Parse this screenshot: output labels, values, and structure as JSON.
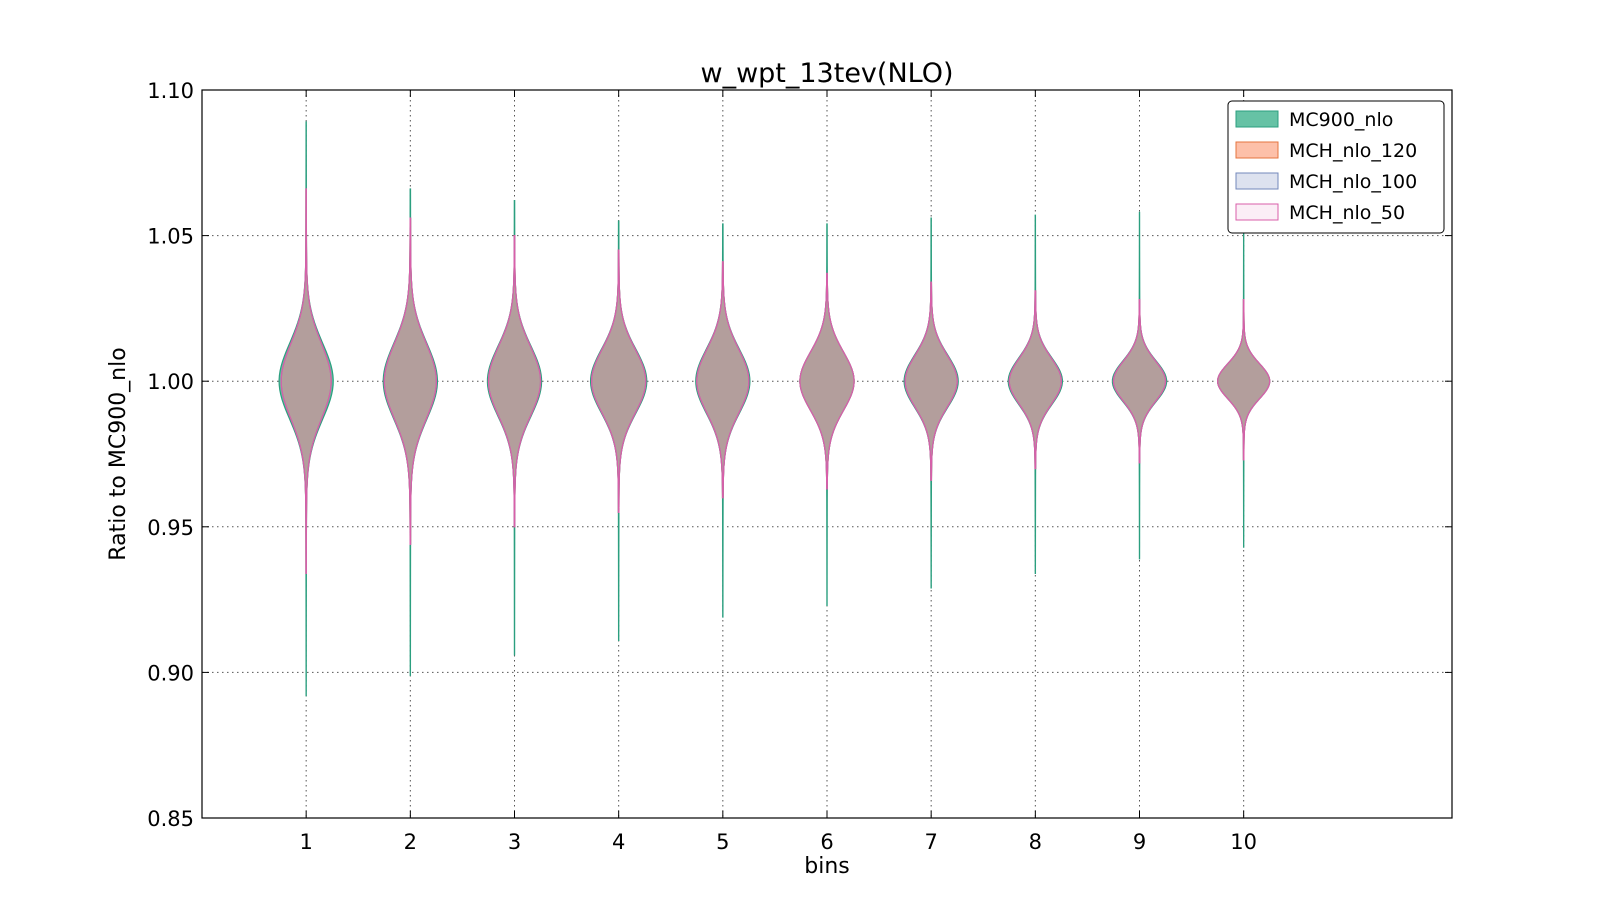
{
  "chart_data": {
    "type": "violin",
    "title": "w_wpt_13tev(NLO)",
    "xlabel": "bins",
    "ylabel": "Ratio to MC900_nlo",
    "ylim": [
      0.85,
      1.1
    ],
    "yticks": [
      "0.85",
      "0.90",
      "0.95",
      "1.00",
      "1.05",
      "1.10"
    ],
    "xlim": [
      0,
      12
    ],
    "categories": [
      "1",
      "2",
      "3",
      "4",
      "5",
      "6",
      "7",
      "8",
      "9",
      "10"
    ],
    "grid": true,
    "legend_position": "top-right",
    "series": [
      {
        "name": "MC900_nlo",
        "color": "#66c2a5",
        "edge": "#2b9f7f",
        "opacity": 1.0,
        "min": [
          0.892,
          0.899,
          0.906,
          0.911,
          0.919,
          0.923,
          0.929,
          0.934,
          0.939,
          0.943
        ],
        "max": [
          1.089,
          1.066,
          1.062,
          1.055,
          1.054,
          1.054,
          1.056,
          1.057,
          1.058,
          1.052
        ],
        "halfwidth": [
          0.26,
          0.26,
          0.26,
          0.27,
          0.26,
          0.26,
          0.26,
          0.26,
          0.26,
          0.25
        ],
        "spread": [
          0.013,
          0.013,
          0.012,
          0.011,
          0.011,
          0.01,
          0.009,
          0.008,
          0.007,
          0.006
        ]
      },
      {
        "name": "MCH_nlo_120",
        "color": "#fc8d62",
        "edge": "#e5743f",
        "opacity": 0.55,
        "min": [
          0.934,
          0.944,
          0.95,
          0.955,
          0.96,
          0.963,
          0.966,
          0.97,
          0.972,
          0.973
        ],
        "max": [
          1.066,
          1.056,
          1.05,
          1.045,
          1.041,
          1.037,
          1.034,
          1.031,
          1.028,
          1.028
        ],
        "halfwidth": [
          0.24,
          0.25,
          0.25,
          0.26,
          0.25,
          0.26,
          0.25,
          0.25,
          0.25,
          0.25
        ],
        "spread": [
          0.013,
          0.013,
          0.012,
          0.011,
          0.011,
          0.01,
          0.009,
          0.008,
          0.007,
          0.006
        ]
      },
      {
        "name": "MCH_nlo_100",
        "color": "#8da0cb",
        "edge": "#7388bb",
        "opacity": 0.3,
        "min": [
          0.934,
          0.944,
          0.95,
          0.955,
          0.96,
          0.963,
          0.966,
          0.97,
          0.972,
          0.973
        ],
        "max": [
          1.066,
          1.056,
          1.05,
          1.045,
          1.041,
          1.037,
          1.034,
          1.031,
          1.028,
          1.028
        ],
        "halfwidth": [
          0.24,
          0.25,
          0.25,
          0.26,
          0.25,
          0.26,
          0.25,
          0.25,
          0.25,
          0.25
        ],
        "spread": [
          0.013,
          0.013,
          0.012,
          0.011,
          0.011,
          0.01,
          0.009,
          0.008,
          0.007,
          0.006
        ]
      },
      {
        "name": "MCH_nlo_50",
        "color": "#e78ac3",
        "edge": "#d85fa9",
        "opacity": 0.15,
        "min": [
          0.934,
          0.944,
          0.95,
          0.955,
          0.96,
          0.963,
          0.966,
          0.97,
          0.972,
          0.973
        ],
        "max": [
          1.066,
          1.056,
          1.05,
          1.045,
          1.041,
          1.037,
          1.034,
          1.031,
          1.028,
          1.028
        ],
        "halfwidth": [
          0.24,
          0.25,
          0.25,
          0.26,
          0.25,
          0.26,
          0.25,
          0.25,
          0.25,
          0.25
        ],
        "spread": [
          0.013,
          0.013,
          0.012,
          0.011,
          0.011,
          0.01,
          0.009,
          0.008,
          0.007,
          0.006
        ]
      }
    ]
  }
}
